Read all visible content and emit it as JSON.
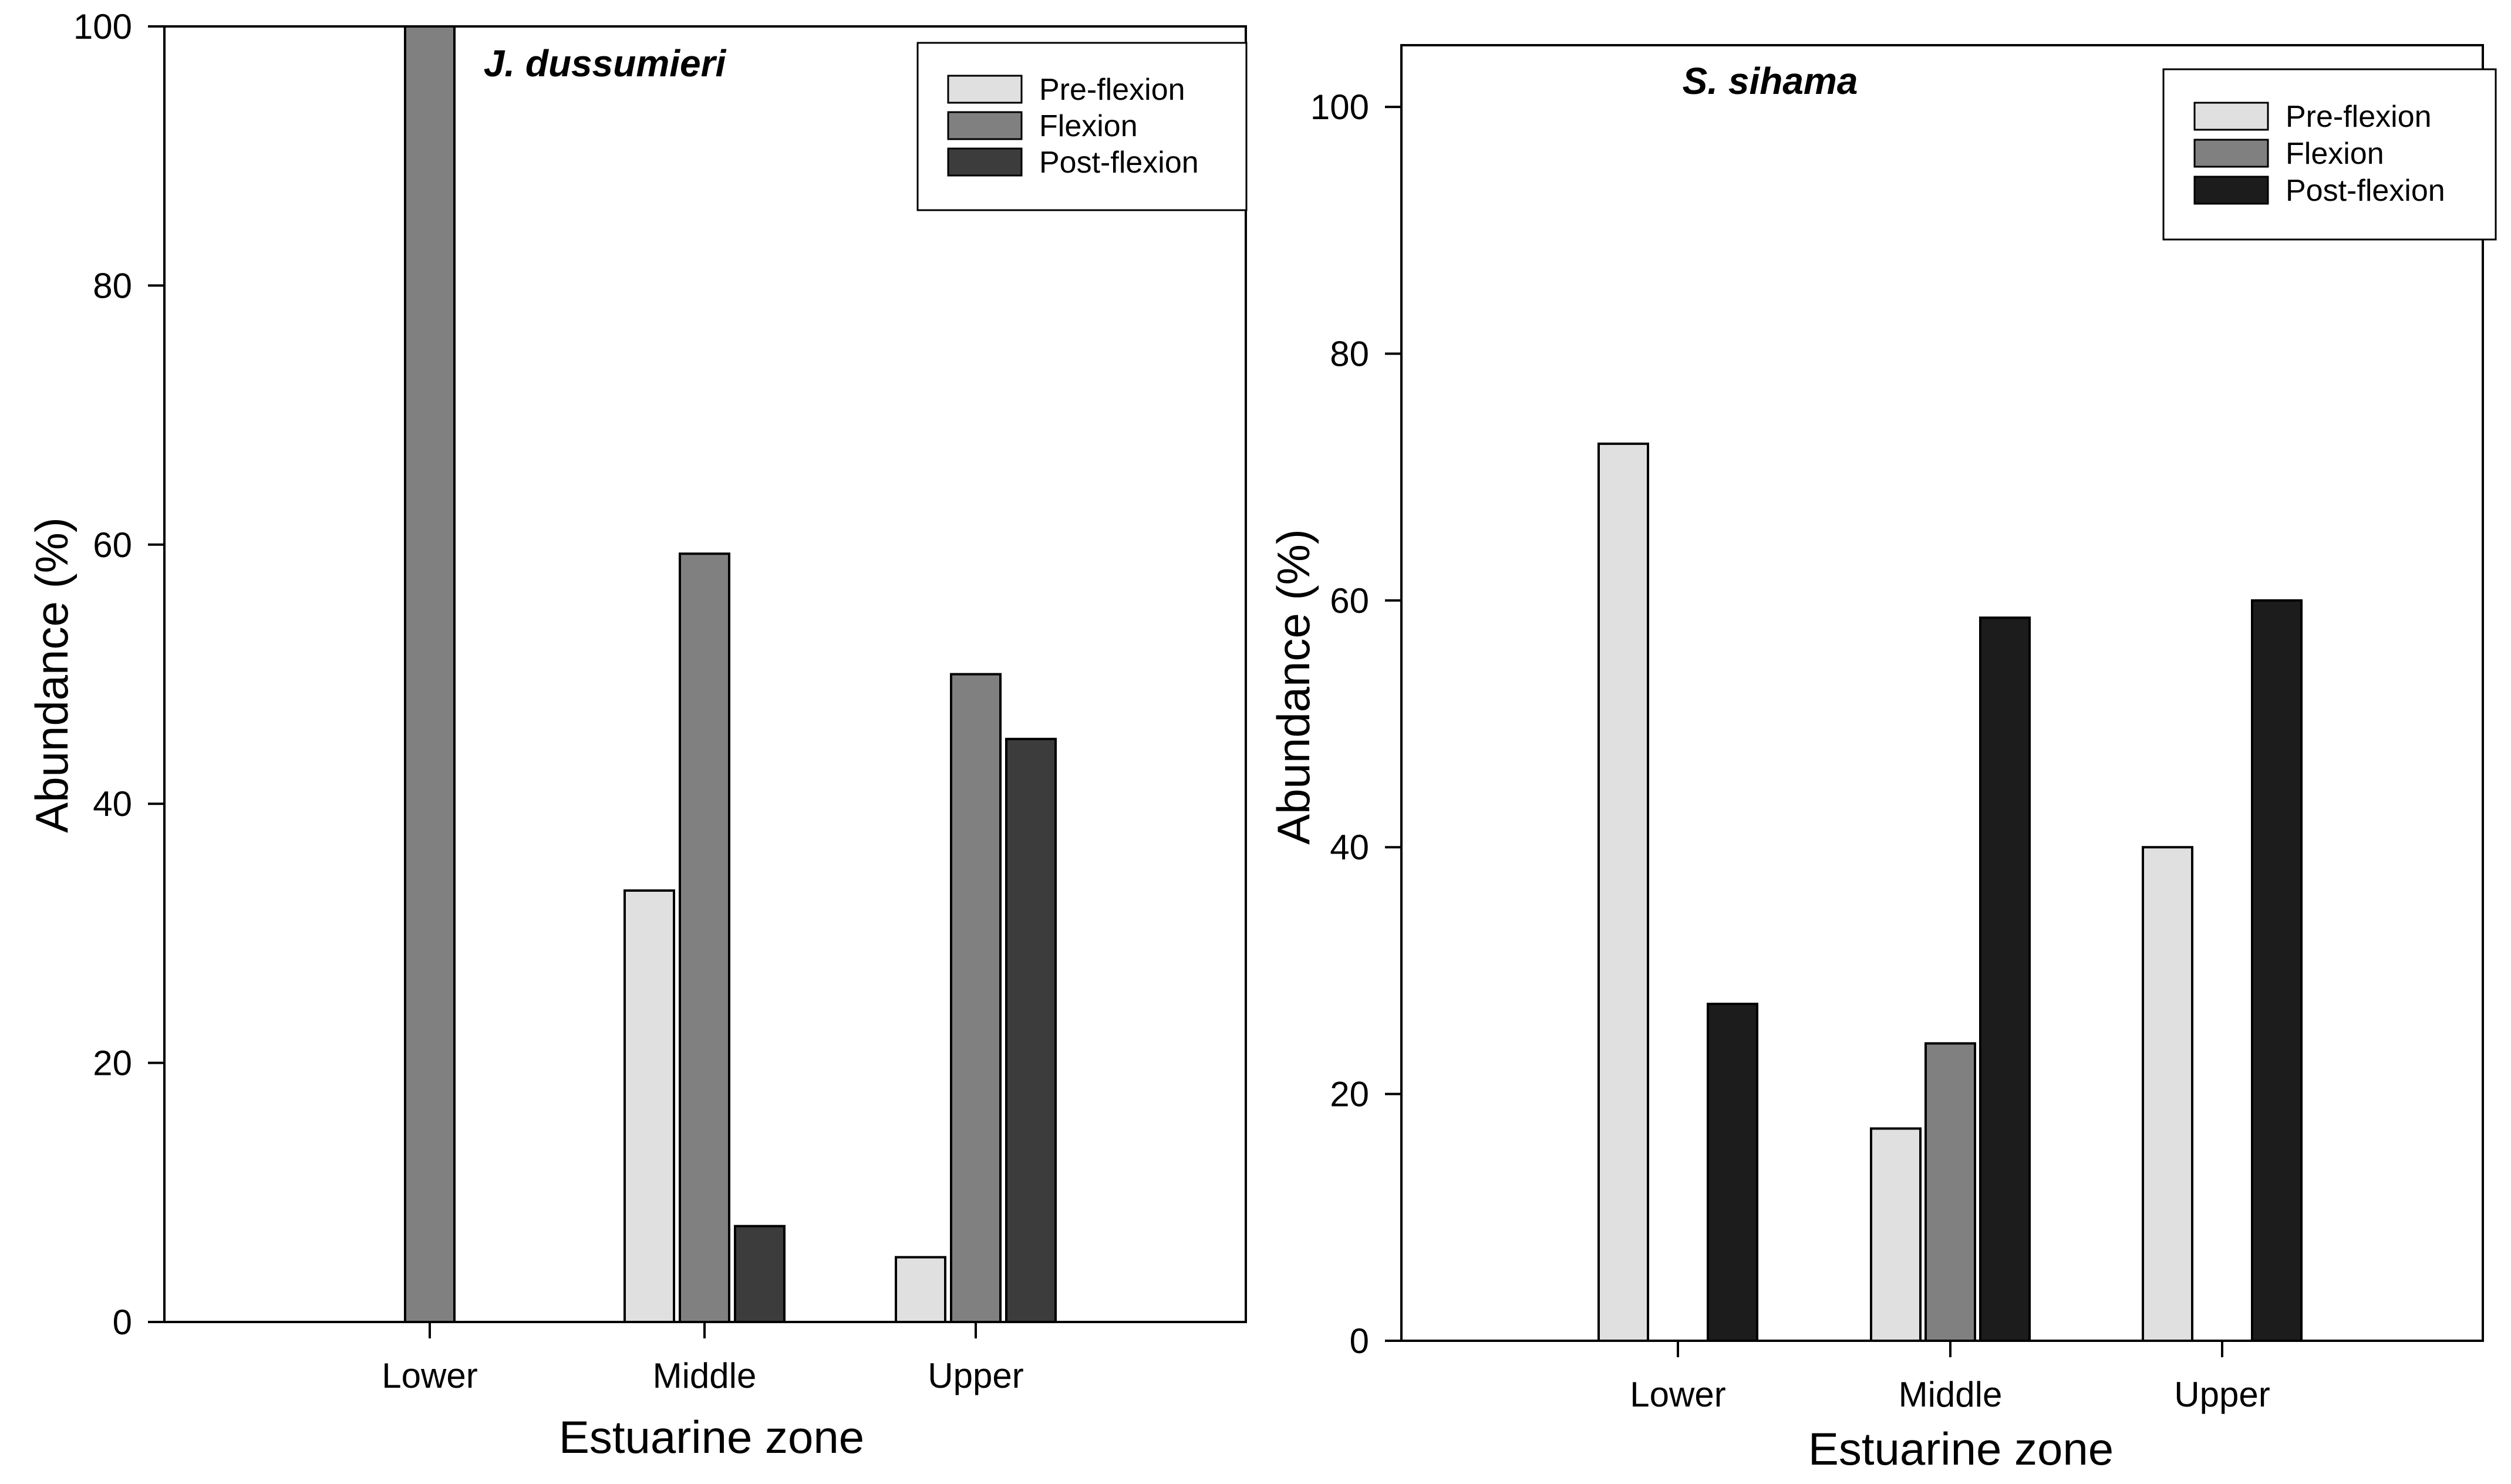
{
  "chart_data": [
    {
      "type": "bar",
      "title": "J. dussumieri",
      "xlabel": "Estuarine zone",
      "ylabel": "Abundance (%)",
      "ylim": [
        0,
        100
      ],
      "yticks": [
        "0",
        "20",
        "40",
        "60",
        "80",
        "100"
      ],
      "categories": [
        "Lower",
        "Middle",
        "Upper"
      ],
      "series": [
        {
          "name": "Pre-flexion",
          "color": "#e0e0e0",
          "values": [
            0,
            33.3,
            5
          ]
        },
        {
          "name": "Flexion",
          "color": "#808080",
          "values": [
            100,
            59.3,
            50
          ]
        },
        {
          "name": "Post-flexion",
          "color": "#3c3c3c",
          "values": [
            0,
            7.4,
            45
          ]
        }
      ],
      "legend": "top-right"
    },
    {
      "type": "bar",
      "title": "S. sihama",
      "xlabel": "Estuarine zone",
      "ylabel": "Abundance (%)",
      "ylim": [
        0,
        105
      ],
      "yticks": [
        "0",
        "20",
        "40",
        "60",
        "80",
        "100"
      ],
      "categories": [
        "Lower",
        "Middle",
        "Upper"
      ],
      "series": [
        {
          "name": "Pre-flexion",
          "color": "#e0e0e0",
          "values": [
            72.7,
            17.2,
            40
          ]
        },
        {
          "name": "Flexion",
          "color": "#808080",
          "values": [
            0,
            24.1,
            0
          ]
        },
        {
          "name": "Post-flexion",
          "color": "#1c1c1c",
          "values": [
            27.3,
            58.6,
            60
          ]
        }
      ],
      "legend": "top-right"
    }
  ]
}
